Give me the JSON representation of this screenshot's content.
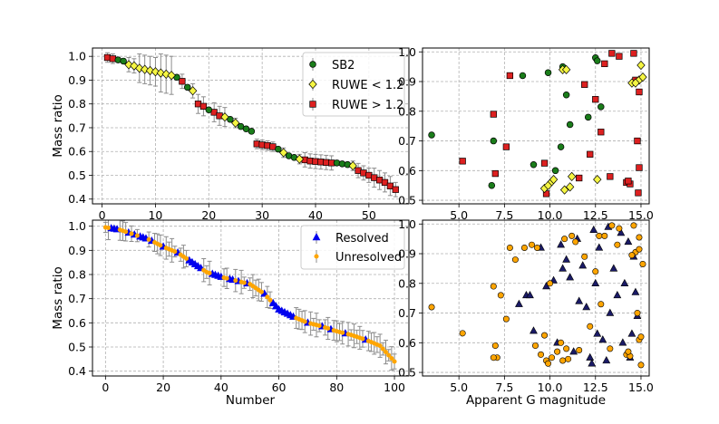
{
  "chart_data": [
    {
      "id": "top-left",
      "type": "scatter",
      "title": "",
      "xlabel": "",
      "ylabel": "Mass ratio",
      "xlim": [
        -1.8,
        57.5
      ],
      "ylim": [
        0.38,
        1.035
      ],
      "xticks": [
        0,
        10,
        20,
        30,
        40,
        50
      ],
      "yticks": [
        0.4,
        0.5,
        0.6,
        0.7,
        0.8,
        0.9,
        1.0
      ],
      "ytick_labels": [
        "0.4",
        "0.5",
        "0.6",
        "0.7",
        "0.8",
        "0.9",
        "1.0"
      ],
      "grid": true,
      "legend_position": "top-right",
      "legend": [
        {
          "key": "sb2",
          "label": "SB2",
          "marker": "circle",
          "color": "#1a7d1a"
        },
        {
          "key": "ruwe_lo",
          "label": "RUWE < 1.2",
          "marker": "diamond",
          "color": "#f5f542"
        },
        {
          "key": "ruwe_hi",
          "label": "RUWE > 1.2",
          "marker": "square",
          "color": "#dd2020"
        }
      ],
      "series": [
        {
          "key": "ruwe_hi",
          "x": [
            1,
            2,
            15,
            18,
            19,
            21,
            22,
            29,
            30,
            31,
            32,
            38,
            39,
            40,
            41,
            42,
            43,
            48,
            49,
            50,
            51,
            52,
            53,
            54,
            55
          ],
          "y": [
            0.995,
            0.99,
            0.895,
            0.8,
            0.79,
            0.765,
            0.75,
            0.632,
            0.628,
            0.625,
            0.62,
            0.565,
            0.56,
            0.558,
            0.556,
            0.554,
            0.552,
            0.52,
            0.51,
            0.5,
            0.49,
            0.48,
            0.47,
            0.455,
            0.44
          ],
          "err": [
            0.02,
            0.02,
            0.03,
            0.04,
            0.04,
            0.04,
            0.04,
            0.02,
            0.02,
            0.02,
            0.02,
            0.03,
            0.03,
            0.03,
            0.03,
            0.03,
            0.03,
            0.03,
            0.03,
            0.03,
            0.04,
            0.04,
            0.04,
            0.04,
            0.03
          ]
        },
        {
          "key": "sb2",
          "x": [
            3,
            4,
            14,
            16,
            20,
            24,
            26,
            27,
            28,
            33,
            35,
            36,
            44,
            45,
            46
          ],
          "y": [
            0.985,
            0.98,
            0.912,
            0.87,
            0.775,
            0.735,
            0.705,
            0.695,
            0.685,
            0.61,
            0.582,
            0.575,
            0.552,
            0.548,
            0.545
          ],
          "err": [
            0.01,
            0.01,
            0.01,
            0.01,
            0.01,
            0.01,
            0.01,
            0.01,
            0.01,
            0.01,
            0.01,
            0.01,
            0.01,
            0.01,
            0.01
          ]
        },
        {
          "key": "ruwe_lo",
          "x": [
            5,
            6,
            7,
            8,
            9,
            10,
            11,
            12,
            13,
            17,
            23,
            25,
            34,
            37,
            47
          ],
          "y": [
            0.965,
            0.96,
            0.95,
            0.945,
            0.94,
            0.935,
            0.93,
            0.925,
            0.92,
            0.855,
            0.745,
            0.72,
            0.595,
            0.568,
            0.54
          ],
          "err": [
            0.03,
            0.03,
            0.06,
            0.06,
            0.06,
            0.06,
            0.08,
            0.08,
            0.08,
            0.03,
            0.04,
            0.02,
            0.02,
            0.02,
            0.02
          ]
        }
      ]
    },
    {
      "id": "top-right",
      "type": "scatter",
      "title": "",
      "xlabel": "",
      "ylabel": "",
      "xlim": [
        3.0,
        15.45
      ],
      "ylim": [
        0.488,
        1.013
      ],
      "xticks": [
        5.0,
        7.5,
        10.0,
        12.5,
        15.0
      ],
      "xtick_labels": [
        "5.0",
        "7.5",
        "10.0",
        "12.5",
        "15.0"
      ],
      "yticks": [
        0.5,
        0.6,
        0.7,
        0.8,
        0.9,
        1.0
      ],
      "ytick_labels": [
        "0.5",
        "0.6",
        "0.7",
        "0.8",
        "0.9",
        "1.0"
      ],
      "grid": true,
      "series": [
        {
          "key": "ruwe_hi",
          "marker": "square",
          "color": "#dd2020",
          "x": [
            5.2,
            6.9,
            7.0,
            7.6,
            7.8,
            9.7,
            9.8,
            11.6,
            11.9,
            12.2,
            12.5,
            12.8,
            13.0,
            13.3,
            13.4,
            13.8,
            14.2,
            14.4,
            14.6,
            14.7,
            14.8,
            14.9,
            14.85,
            14.9,
            14.3
          ],
          "y": [
            0.632,
            0.79,
            0.59,
            0.68,
            0.92,
            0.625,
            0.522,
            0.575,
            0.89,
            0.655,
            0.84,
            0.73,
            0.96,
            0.58,
            0.995,
            0.985,
            0.56,
            0.555,
            0.995,
            0.905,
            0.7,
            0.61,
            0.525,
            0.865,
            0.565
          ]
        },
        {
          "key": "sb2",
          "marker": "circle",
          "color": "#1a7d1a",
          "x": [
            3.5,
            6.9,
            6.8,
            8.5,
            9.1,
            9.9,
            10.6,
            10.7,
            10.9,
            12.1,
            12.5,
            12.6,
            12.8,
            10.3,
            11.1
          ],
          "y": [
            0.72,
            0.7,
            0.55,
            0.92,
            0.62,
            0.93,
            0.68,
            0.95,
            0.855,
            0.78,
            0.98,
            0.97,
            0.815,
            0.6,
            0.755
          ]
        },
        {
          "key": "ruwe_lo",
          "marker": "diamond",
          "color": "#f5f542",
          "x": [
            9.7,
            9.9,
            10.1,
            10.2,
            10.7,
            10.8,
            11.1,
            11.2,
            12.6,
            14.5,
            14.9,
            15.0,
            15.1,
            14.7,
            10.9
          ],
          "y": [
            0.54,
            0.55,
            0.563,
            0.57,
            0.94,
            0.535,
            0.545,
            0.58,
            0.57,
            0.895,
            0.905,
            0.955,
            0.915,
            0.895,
            0.94
          ]
        }
      ]
    },
    {
      "id": "bottom-left",
      "type": "scatter",
      "title": "",
      "xlabel": "Number",
      "ylabel": "Mass ratio",
      "xlim": [
        -4.5,
        105
      ],
      "ylim": [
        0.38,
        1.025
      ],
      "xticks": [
        0,
        20,
        40,
        60,
        80,
        100
      ],
      "yticks": [
        0.4,
        0.5,
        0.6,
        0.7,
        0.8,
        0.9,
        1.0
      ],
      "ytick_labels": [
        "0.4",
        "0.5",
        "0.6",
        "0.7",
        "0.8",
        "0.9",
        "1.0"
      ],
      "grid": true,
      "legend_position": "top-right",
      "legend": [
        {
          "key": "resolved",
          "label": "Resolved",
          "marker": "triangle",
          "color": "#0000ee"
        },
        {
          "key": "unresolved",
          "label": "Unresolved",
          "marker": "dot",
          "color": "#ffa500"
        }
      ],
      "curve": [
        [
          0,
          0.995
        ],
        [
          5,
          0.985
        ],
        [
          10,
          0.965
        ],
        [
          15,
          0.945
        ],
        [
          20,
          0.915
        ],
        [
          25,
          0.89
        ],
        [
          30,
          0.85
        ],
        [
          35,
          0.81
        ],
        [
          40,
          0.79
        ],
        [
          45,
          0.775
        ],
        [
          50,
          0.76
        ],
        [
          55,
          0.72
        ],
        [
          60,
          0.655
        ],
        [
          65,
          0.625
        ],
        [
          70,
          0.6
        ],
        [
          75,
          0.585
        ],
        [
          80,
          0.565
        ],
        [
          85,
          0.55
        ],
        [
          90,
          0.53
        ],
        [
          95,
          0.505
        ],
        [
          100,
          0.44
        ]
      ],
      "series": [
        {
          "key": "resolved",
          "x": [
            2,
            3,
            4,
            8,
            10,
            12,
            13,
            14,
            16,
            20,
            25,
            29,
            30,
            31,
            32,
            33,
            37,
            38,
            39,
            40,
            43,
            44,
            46,
            49,
            55,
            58,
            59,
            60,
            61,
            62,
            63,
            64,
            65,
            70,
            75,
            78,
            83,
            90
          ],
          "err": 0.004
        },
        {
          "key": "unresolved",
          "x": [
            0,
            1,
            5,
            6,
            7,
            9,
            11,
            15,
            17,
            18,
            19,
            21,
            22,
            23,
            24,
            26,
            27,
            28,
            34,
            35,
            36,
            41,
            42,
            45,
            47,
            48,
            50,
            51,
            52,
            53,
            54,
            56,
            57,
            66,
            67,
            68,
            69,
            71,
            72,
            73,
            74,
            76,
            77,
            79,
            80,
            81,
            82,
            84,
            85,
            86,
            87,
            88,
            89,
            91,
            92,
            93,
            94,
            95,
            96,
            97,
            98,
            99,
            100
          ],
          "err": 0.035
        }
      ]
    },
    {
      "id": "bottom-right",
      "type": "scatter",
      "title": "",
      "xlabel": "Apparent G magnitude",
      "ylabel": "",
      "xlim": [
        3.0,
        15.45
      ],
      "ylim": [
        0.488,
        1.013
      ],
      "xticks": [
        5.0,
        7.5,
        10.0,
        12.5,
        15.0
      ],
      "xtick_labels": [
        "5.0",
        "7.5",
        "10.0",
        "12.5",
        "15.0"
      ],
      "yticks": [
        0.5,
        0.6,
        0.7,
        0.8,
        0.9,
        1.0
      ],
      "ytick_labels": [
        "0.5",
        "0.6",
        "0.7",
        "0.8",
        "0.9",
        "1.0"
      ],
      "grid": true,
      "series": [
        {
          "key": "resolved",
          "marker": "triangle",
          "color": "#1a1a66",
          "x": [
            8.3,
            8.7,
            8.9,
            9.1,
            9.5,
            9.8,
            10.2,
            10.4,
            10.6,
            10.7,
            10.9,
            11.1,
            11.3,
            11.5,
            11.6,
            11.8,
            12.0,
            12.2,
            12.4,
            12.5,
            12.6,
            12.7,
            12.9,
            13.1,
            13.3,
            13.5,
            13.7,
            13.9,
            14.0,
            14.1,
            14.3,
            14.4,
            14.5,
            14.6,
            14.7,
            14.8,
            13.2,
            12.3
          ],
          "y": [
            0.73,
            0.76,
            0.76,
            0.64,
            0.92,
            0.79,
            0.81,
            0.6,
            0.93,
            0.85,
            0.88,
            0.82,
            0.57,
            0.95,
            0.74,
            0.86,
            0.72,
            0.55,
            0.98,
            0.8,
            0.63,
            0.92,
            0.61,
            0.54,
            0.7,
            0.85,
            0.76,
            0.97,
            0.6,
            0.8,
            0.94,
            0.55,
            0.63,
            0.89,
            0.77,
            0.69,
            0.99,
            0.53
          ]
        },
        {
          "key": "unresolved",
          "marker": "dot",
          "color": "#ffa500",
          "x": [
            3.5,
            5.2,
            6.9,
            7.0,
            7.1,
            7.6,
            7.8,
            8.6,
            9.0,
            9.3,
            9.5,
            9.7,
            9.8,
            9.9,
            10.1,
            10.4,
            10.6,
            10.8,
            10.9,
            11.0,
            11.2,
            11.6,
            11.9,
            12.2,
            12.5,
            12.8,
            13.0,
            13.3,
            13.4,
            13.8,
            14.2,
            14.4,
            14.6,
            14.7,
            14.8,
            14.9,
            15.0,
            15.1,
            14.9,
            14.5,
            13.7,
            12.7,
            11.4,
            10.7,
            10.0,
            9.2,
            8.1,
            7.3,
            6.9,
            14.3,
            14.9,
            15.0
          ],
          "y": [
            0.72,
            0.632,
            0.79,
            0.59,
            0.55,
            0.68,
            0.92,
            0.92,
            0.93,
            0.92,
            0.56,
            0.625,
            0.54,
            0.53,
            0.55,
            0.57,
            0.6,
            0.95,
            0.58,
            0.545,
            0.96,
            0.575,
            0.89,
            0.655,
            0.84,
            0.73,
            0.96,
            0.58,
            0.995,
            0.985,
            0.56,
            0.555,
            0.995,
            0.905,
            0.7,
            0.61,
            0.525,
            0.865,
            0.915,
            0.895,
            0.93,
            0.96,
            0.94,
            0.54,
            0.8,
            0.59,
            0.88,
            0.76,
            0.55,
            0.57,
            0.955,
            0.62
          ]
        }
      ]
    }
  ]
}
